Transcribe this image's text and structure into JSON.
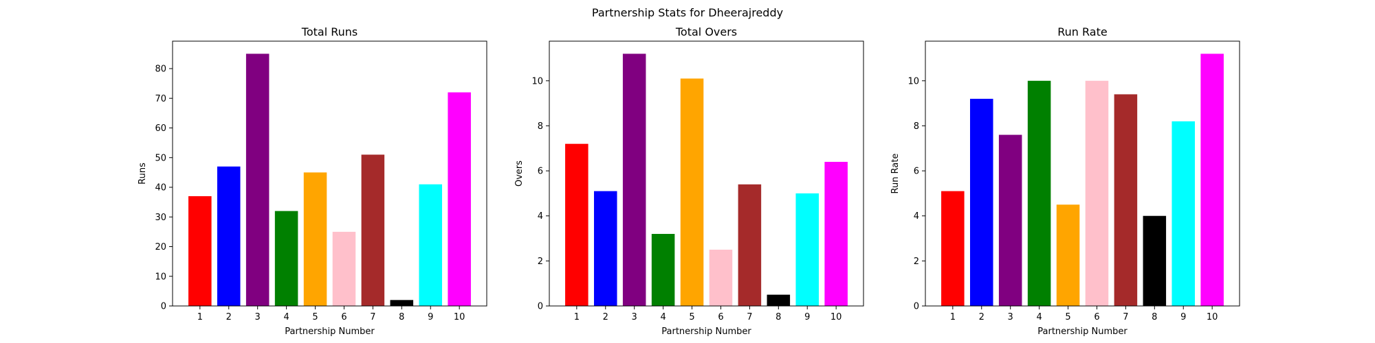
{
  "figure": {
    "suptitle": "Partnership Stats for Dheerajreddy"
  },
  "chart_data": [
    {
      "type": "bar",
      "title": "Total Runs",
      "xlabel": "Partnership Number",
      "ylabel": "Runs",
      "categories": [
        "1",
        "2",
        "3",
        "4",
        "5",
        "6",
        "7",
        "8",
        "9",
        "10"
      ],
      "values": [
        37,
        47,
        85,
        32,
        45,
        25,
        51,
        2,
        41,
        72
      ],
      "colors": [
        "#ff0000",
        "#0000ff",
        "#800080",
        "#008000",
        "#ffa500",
        "#ffc0cb",
        "#a52a2a",
        "#000000",
        "#00ffff",
        "#ff00ff"
      ],
      "ylim": [
        0,
        89.25
      ],
      "yticks": [
        0,
        10,
        20,
        30,
        40,
        50,
        60,
        70,
        80
      ],
      "grid": false,
      "legend": "none"
    },
    {
      "type": "bar",
      "title": "Total Overs",
      "xlabel": "Partnership Number",
      "ylabel": "Overs",
      "categories": [
        "1",
        "2",
        "3",
        "4",
        "5",
        "6",
        "7",
        "8",
        "9",
        "10"
      ],
      "values": [
        7.2,
        5.1,
        11.2,
        3.2,
        10.1,
        2.5,
        5.4,
        0.5,
        5.0,
        6.4
      ],
      "colors": [
        "#ff0000",
        "#0000ff",
        "#800080",
        "#008000",
        "#ffa500",
        "#ffc0cb",
        "#a52a2a",
        "#000000",
        "#00ffff",
        "#ff00ff"
      ],
      "ylim": [
        0,
        11.76
      ],
      "yticks": [
        0,
        2,
        4,
        6,
        8,
        10
      ],
      "grid": false,
      "legend": "none"
    },
    {
      "type": "bar",
      "title": "Run Rate",
      "xlabel": "Partnership Number",
      "ylabel": "Run Rate",
      "categories": [
        "1",
        "2",
        "3",
        "4",
        "5",
        "6",
        "7",
        "8",
        "9",
        "10"
      ],
      "values": [
        5.1,
        9.2,
        7.6,
        10.0,
        4.5,
        10.0,
        9.4,
        4.0,
        8.2,
        11.2
      ],
      "colors": [
        "#ff0000",
        "#0000ff",
        "#800080",
        "#008000",
        "#ffa500",
        "#ffc0cb",
        "#a52a2a",
        "#000000",
        "#00ffff",
        "#ff00ff"
      ],
      "ylim": [
        0,
        11.76
      ],
      "yticks": [
        0,
        2,
        4,
        6,
        8,
        10
      ],
      "grid": false,
      "legend": "none"
    }
  ]
}
